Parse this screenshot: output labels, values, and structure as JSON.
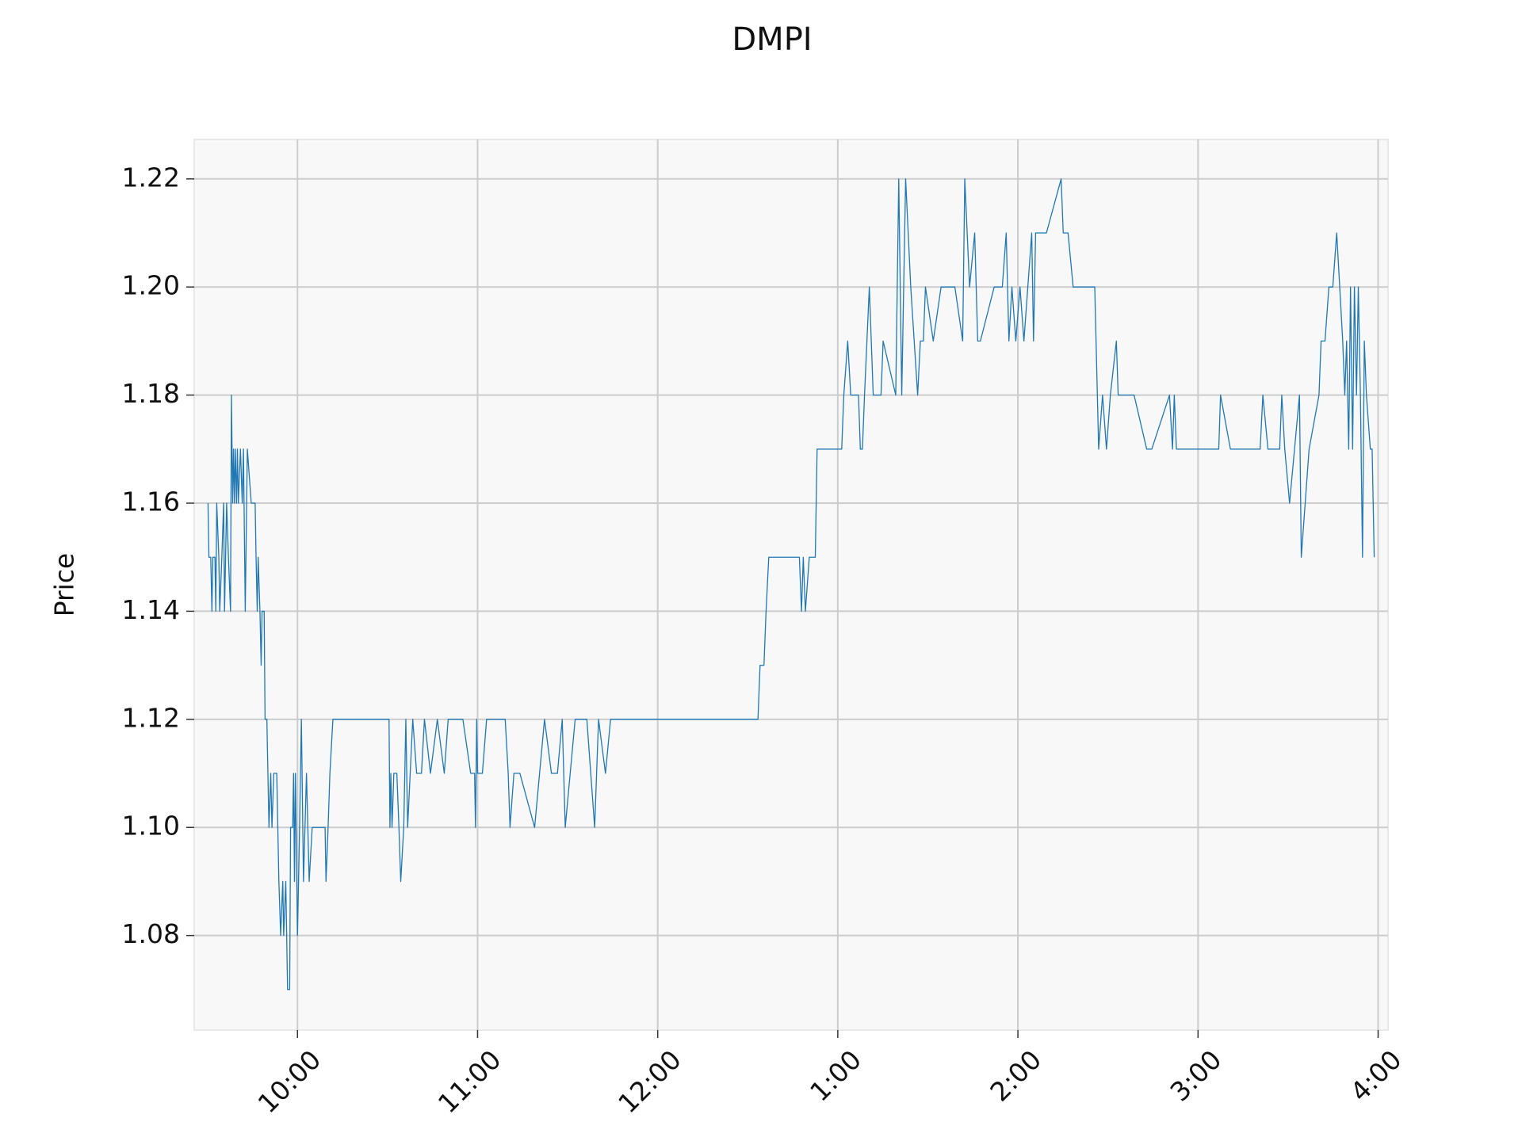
{
  "chart_data": {
    "type": "line",
    "title": "DMPI",
    "y_label": "Price",
    "color": "#1f77b4",
    "grid": true,
    "x": [
      570.2,
      570.5,
      571.1,
      571.5,
      571.8,
      572.5,
      572.8,
      573.1,
      573.8,
      574.1,
      574.8,
      575.4,
      575.7,
      576.4,
      577.0,
      577.7,
      578.0,
      578.4,
      578.7,
      579.0,
      579.3,
      579.7,
      580.0,
      580.3,
      581.0,
      581.6,
      582.0,
      582.6,
      583.3,
      584.6,
      585.9,
      586.2,
      586.6,
      586.9,
      587.5,
      587.9,
      588.2,
      588.9,
      589.2,
      589.8,
      590.5,
      591.1,
      591.5,
      592.1,
      593.1,
      593.8,
      594.4,
      595.1,
      595.4,
      596.1,
      596.7,
      597.4,
      597.7,
      598.4,
      598.7,
      599.0,
      599.3,
      600.0,
      600.7,
      601.3,
      602.0,
      603.0,
      603.9,
      604.9,
      605.9,
      609.2,
      609.5,
      610.2,
      610.8,
      611.8,
      613.4,
      630.5,
      630.8,
      631.1,
      631.5,
      632.1,
      633.1,
      633.8,
      634.4,
      635.4,
      636.1,
      636.7,
      638.4,
      639.7,
      641.3,
      642.3,
      644.3,
      646.6,
      648.9,
      650.2,
      655.1,
      657.7,
      659.0,
      659.3,
      659.7,
      660.0,
      661.6,
      663.0,
      669.2,
      670.2,
      670.8,
      672.1,
      674.1,
      679.0,
      682.3,
      684.6,
      686.6,
      688.2,
      689.2,
      692.5,
      696.4,
      697.7,
      699.0,
      700.3,
      702.6,
      704.3,
      753.4,
      754.1,
      755.4,
      756.1,
      757.0,
      767.2,
      767.9,
      768.5,
      769.2,
      770.5,
      772.5,
      773.1,
      781.3,
      782.0,
      783.3,
      784.3,
      786.9,
      787.5,
      788.2,
      788.9,
      790.5,
      791.8,
      794.4,
      795.1,
      799.3,
      800.3,
      801.3,
      802.6,
      804.3,
      806.6,
      807.5,
      808.5,
      809.2,
      811.8,
      814.4,
      819.0,
      821.6,
      822.3,
      823.9,
      825.6,
      826.6,
      827.5,
      832.1,
      834.8,
      836.1,
      837.0,
      838.0,
      839.3,
      840.7,
      842.0,
      843.3,
      844.6,
      845.2,
      845.9,
      849.5,
      854.4,
      855.1,
      856.7,
      858.4,
      865.6,
      866.9,
      868.2,
      869.5,
      870.8,
      872.8,
      873.4,
      878.7,
      882.9,
      884.6,
      890.5,
      891.5,
      892.1,
      892.8,
      906.9,
      907.5,
      910.8,
      920.7,
      921.6,
      923.3,
      927.2,
      927.9,
      928.9,
      930.5,
      933.8,
      934.4,
      937.0,
      940.3,
      941.0,
      942.3,
      943.6,
      944.9,
      946.2,
      948.2,
      948.9,
      949.5,
      950.2,
      950.8,
      951.5,
      952.1,
      952.8,
      953.4,
      954.1,
      954.8,
      955.4,
      956.1,
      957.4,
      958.0,
      958.7
    ],
    "values": [
      1.16,
      1.15,
      1.15,
      1.14,
      1.15,
      1.15,
      1.14,
      1.16,
      1.15,
      1.14,
      1.15,
      1.16,
      1.14,
      1.16,
      1.15,
      1.14,
      1.18,
      1.16,
      1.17,
      1.16,
      1.17,
      1.16,
      1.17,
      1.16,
      1.17,
      1.16,
      1.17,
      1.14,
      1.17,
      1.16,
      1.16,
      1.15,
      1.14,
      1.15,
      1.14,
      1.13,
      1.14,
      1.14,
      1.12,
      1.12,
      1.1,
      1.11,
      1.1,
      1.11,
      1.11,
      1.09,
      1.08,
      1.09,
      1.08,
      1.09,
      1.07,
      1.07,
      1.1,
      1.1,
      1.11,
      1.09,
      1.11,
      1.08,
      1.1,
      1.12,
      1.09,
      1.11,
      1.09,
      1.1,
      1.1,
      1.1,
      1.09,
      1.1,
      1.11,
      1.12,
      1.12,
      1.12,
      1.1,
      1.11,
      1.1,
      1.11,
      1.11,
      1.1,
      1.09,
      1.1,
      1.12,
      1.1,
      1.12,
      1.11,
      1.11,
      1.12,
      1.11,
      1.12,
      1.11,
      1.12,
      1.12,
      1.11,
      1.11,
      1.1,
      1.12,
      1.11,
      1.11,
      1.12,
      1.12,
      1.11,
      1.1,
      1.11,
      1.11,
      1.1,
      1.12,
      1.11,
      1.11,
      1.12,
      1.1,
      1.12,
      1.12,
      1.11,
      1.1,
      1.12,
      1.11,
      1.12,
      1.12,
      1.13,
      1.13,
      1.14,
      1.15,
      1.15,
      1.14,
      1.15,
      1.14,
      1.15,
      1.15,
      1.17,
      1.17,
      1.18,
      1.19,
      1.18,
      1.18,
      1.17,
      1.17,
      1.18,
      1.2,
      1.18,
      1.18,
      1.19,
      1.18,
      1.22,
      1.18,
      1.22,
      1.2,
      1.18,
      1.19,
      1.19,
      1.2,
      1.19,
      1.2,
      1.2,
      1.19,
      1.22,
      1.2,
      1.21,
      1.19,
      1.19,
      1.2,
      1.2,
      1.21,
      1.19,
      1.2,
      1.19,
      1.2,
      1.19,
      1.2,
      1.21,
      1.19,
      1.21,
      1.21,
      1.22,
      1.21,
      1.21,
      1.2,
      1.2,
      1.17,
      1.18,
      1.17,
      1.18,
      1.19,
      1.18,
      1.18,
      1.17,
      1.17,
      1.18,
      1.17,
      1.18,
      1.17,
      1.17,
      1.18,
      1.17,
      1.17,
      1.18,
      1.17,
      1.17,
      1.18,
      1.17,
      1.16,
      1.18,
      1.15,
      1.17,
      1.18,
      1.19,
      1.19,
      1.2,
      1.2,
      1.21,
      1.19,
      1.18,
      1.19,
      1.17,
      1.2,
      1.17,
      1.2,
      1.18,
      1.2,
      1.18,
      1.15,
      1.19,
      1.18,
      1.17,
      1.17,
      1.15
    ],
    "xlim": [
      565.6,
      963.3
    ],
    "xticks": [
      {
        "value": 600,
        "label": "10:00"
      },
      {
        "value": 660,
        "label": "11:00"
      },
      {
        "value": 720,
        "label": "12:00"
      },
      {
        "value": 780,
        "label": "1:00"
      },
      {
        "value": 840,
        "label": "2:00"
      },
      {
        "value": 900,
        "label": "3:00"
      },
      {
        "value": 960,
        "label": "4:00"
      }
    ],
    "ylim": [
      1.0625,
      1.2273
    ],
    "yticks": [
      {
        "value": 1.08,
        "label": "1.08"
      },
      {
        "value": 1.1,
        "label": "1.10"
      },
      {
        "value": 1.12,
        "label": "1.12"
      },
      {
        "value": 1.14,
        "label": "1.14"
      },
      {
        "value": 1.16,
        "label": "1.16"
      },
      {
        "value": 1.18,
        "label": "1.18"
      },
      {
        "value": 1.2,
        "label": "1.20"
      },
      {
        "value": 1.22,
        "label": "1.22"
      }
    ]
  }
}
